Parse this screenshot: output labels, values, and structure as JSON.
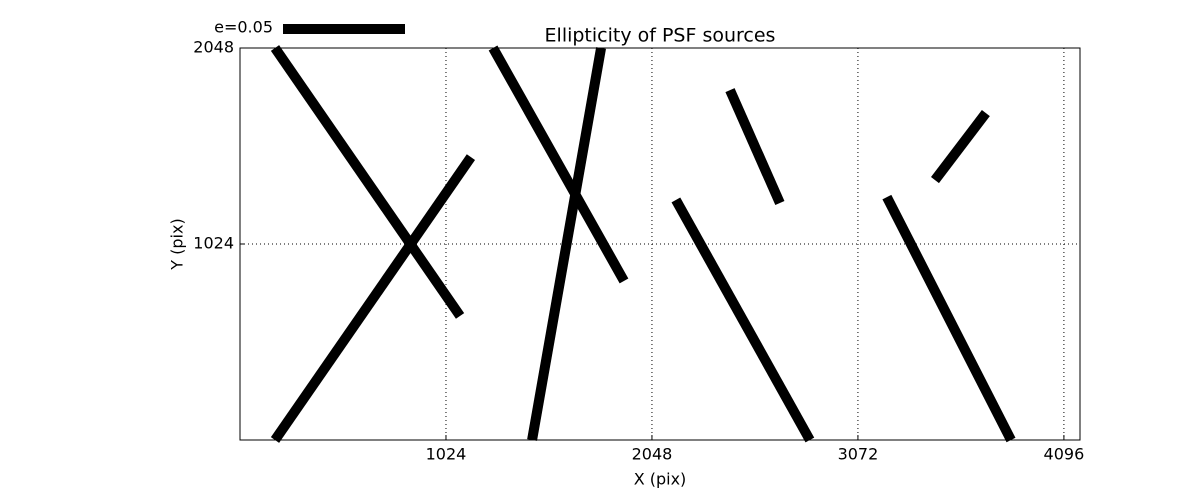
{
  "chart_data": {
    "type": "segments",
    "title": "Ellipticity of PSF sources",
    "x_label": "X (pix)",
    "y_label": "Y (pix)",
    "key_label": "e=0.05",
    "xlim": [
      0,
      4176
    ],
    "ylim": [
      0,
      2048
    ],
    "xticks": [
      1024,
      2048,
      3072,
      4096
    ],
    "yticks": [
      1024,
      2048
    ],
    "grid": true,
    "color": "#000000",
    "segments": [
      {
        "x": [
          174,
          1094
        ],
        "y": [
          2048,
          648
        ]
      },
      {
        "x": [
          174,
          1148
        ],
        "y": [
          0,
          1478
        ]
      },
      {
        "x": [
          1258,
          1909
        ],
        "y": [
          2048,
          831
        ]
      },
      {
        "x": [
          1452,
          1795
        ],
        "y": [
          0,
          2048
        ]
      },
      {
        "x": [
          2167,
          2833
        ],
        "y": [
          1254,
          0
        ]
      },
      {
        "x": [
          2436,
          2684
        ],
        "y": [
          1828,
          1238
        ]
      },
      {
        "x": [
          3216,
          3833
        ],
        "y": [
          1269,
          0
        ]
      },
      {
        "x": [
          3455,
          3708
        ],
        "y": [
          1358,
          1708
        ]
      }
    ]
  }
}
